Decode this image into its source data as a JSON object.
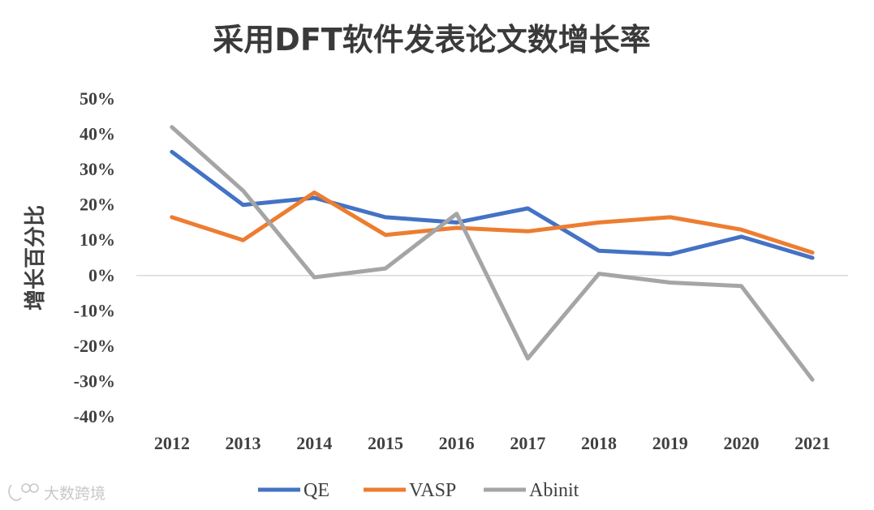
{
  "chart_data": {
    "type": "line",
    "title": "采用DFT软件发表论文数增长率",
    "xlabel": "",
    "ylabel": "增长百分比",
    "categories": [
      "2012",
      "2013",
      "2014",
      "2015",
      "2016",
      "2017",
      "2018",
      "2019",
      "2020",
      "2021"
    ],
    "ylim": [
      -40,
      50
    ],
    "yticks": [
      "-40%",
      "-30%",
      "-20%",
      "-10%",
      "0%",
      "10%",
      "20%",
      "30%",
      "40%",
      "50%"
    ],
    "grid": false,
    "legend": "bottom",
    "series": [
      {
        "name": "QE",
        "color": "#4472C4",
        "values": [
          35,
          20,
          22,
          16.5,
          15,
          19,
          7,
          6,
          11,
          5
        ]
      },
      {
        "name": "VASP",
        "color": "#ED7D31",
        "values": [
          16.5,
          10,
          23.5,
          11.5,
          13.5,
          12.5,
          15,
          16.5,
          13,
          6.5
        ]
      },
      {
        "name": "Abinit",
        "color": "#A5A5A5",
        "values": [
          42,
          24,
          -0.5,
          2,
          17.5,
          -23.5,
          0.5,
          -2,
          -3,
          -29.5
        ]
      }
    ]
  },
  "watermark": {
    "text": "大数跨境",
    "icon": "watermark-logo-icon"
  }
}
